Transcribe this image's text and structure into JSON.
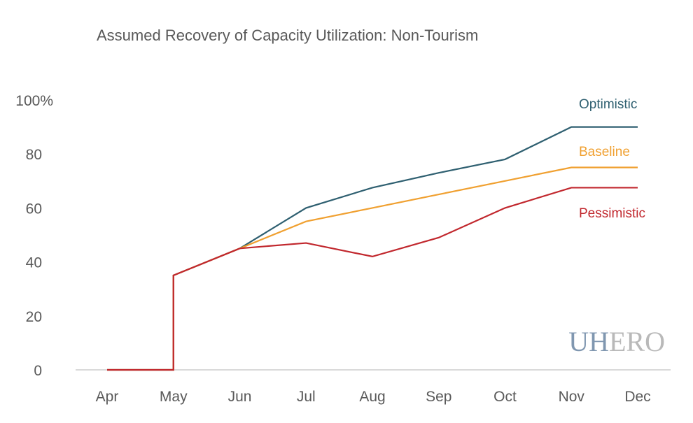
{
  "chart_data": {
    "type": "line",
    "title": "Assumed Recovery of Capacity Utilization: Non-Tourism",
    "xlabel": "",
    "ylabel": "",
    "categories": [
      "Apr",
      "May",
      "Jun",
      "Jul",
      "Aug",
      "Sep",
      "Oct",
      "Nov",
      "Dec"
    ],
    "ylim": [
      0,
      100
    ],
    "yticks": [
      0,
      20,
      40,
      60,
      80,
      100
    ],
    "ytick_labels": [
      "0",
      "20",
      "40",
      "60",
      "80",
      "100%"
    ],
    "grid": false,
    "legend": "inline-right",
    "series": [
      {
        "name": "Optimistic",
        "color": "#2e5f70",
        "values": [
          0,
          35,
          45,
          60,
          67.5,
          73,
          78,
          90,
          90
        ]
      },
      {
        "name": "Baseline",
        "color": "#f0a030",
        "values": [
          0,
          35,
          45,
          55,
          60,
          65,
          70,
          75,
          75
        ]
      },
      {
        "name": "Pessimistic",
        "color": "#c1272d",
        "values": [
          0,
          35,
          45,
          47,
          42,
          49,
          60,
          67.5,
          67.5
        ]
      }
    ]
  },
  "watermark": {
    "part1": "UH",
    "part2": "ERO",
    "color1": "#8097b0",
    "color2": "#b9b9b9"
  },
  "axis_color": "#d9d9d9"
}
